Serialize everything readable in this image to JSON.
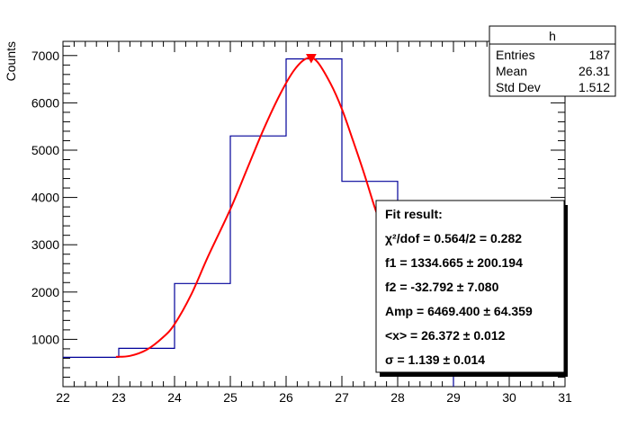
{
  "chart_data": {
    "type": "bar",
    "ylabel": "Counts",
    "xlim": [
      22,
      31
    ],
    "ylim": [
      0,
      7300
    ],
    "x_ticks": [
      "22",
      "23",
      "24",
      "25",
      "26",
      "27",
      "28",
      "29",
      "30",
      "31"
    ],
    "y_ticks": [
      "1000",
      "2000",
      "3000",
      "4000",
      "5000",
      "6000",
      "7000"
    ],
    "bins": [
      {
        "low": 22,
        "high": 23,
        "value": 620
      },
      {
        "low": 23,
        "high": 24,
        "value": 810
      },
      {
        "low": 24,
        "high": 25,
        "value": 2180
      },
      {
        "low": 25,
        "high": 26,
        "value": 5300
      },
      {
        "low": 26,
        "high": 27,
        "value": 6930
      },
      {
        "low": 27,
        "high": 28,
        "value": 4340
      },
      {
        "low": 28,
        "high": 29,
        "value": 3000
      }
    ],
    "fit_curve": {
      "color": "#ff0000",
      "points": [
        [
          22.95,
          630
        ],
        [
          23.2,
          650
        ],
        [
          23.5,
          780
        ],
        [
          23.8,
          1050
        ],
        [
          24.0,
          1320
        ],
        [
          24.3,
          1950
        ],
        [
          24.6,
          2750
        ],
        [
          25.0,
          3750
        ],
        [
          25.3,
          4600
        ],
        [
          25.6,
          5450
        ],
        [
          25.9,
          6200
        ],
        [
          26.15,
          6700
        ],
        [
          26.37,
          6940
        ],
        [
          26.55,
          6880
        ],
        [
          26.8,
          6400
        ],
        [
          27.0,
          5870
        ],
        [
          27.2,
          5200
        ],
        [
          27.4,
          4500
        ],
        [
          27.6,
          3750
        ],
        [
          27.8,
          3100
        ]
      ],
      "peak_marker": {
        "x": 26.45,
        "y": 6930
      }
    },
    "histogram_color": "#000099",
    "stats_box": {
      "title": "h",
      "rows": [
        {
          "label": "Entries",
          "value": "187"
        },
        {
          "label": "Mean",
          "value": "26.31"
        },
        {
          "label": "Std Dev",
          "value": "1.512"
        }
      ]
    },
    "fit_box": {
      "lines": [
        "Fit result:",
        "χ²/dof = 0.564/2 = 0.282",
        "f1 = 1334.665 ± 200.194",
        "f2 = -32.792 ± 7.080",
        "Amp = 6469.400 ± 64.359",
        "<x> = 26.372 ± 0.012",
        "σ = 1.139 ± 0.014"
      ]
    }
  }
}
